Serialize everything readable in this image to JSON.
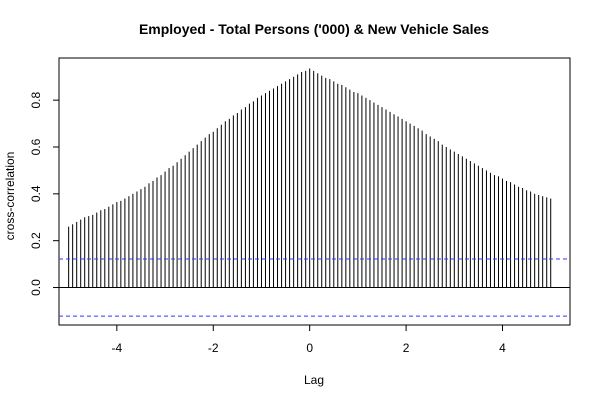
{
  "chart_data": {
    "type": "bar",
    "title": "Employed - Total Persons ('000) & New Vehicle Sales",
    "xlabel": "Lag",
    "ylabel": "cross-correlation",
    "xlim": [
      -5.2,
      5.4
    ],
    "ylim": [
      -0.16,
      0.98
    ],
    "x_ticks": [
      -4,
      -2,
      0,
      2,
      4
    ],
    "x_tick_labels": [
      "-4",
      "-2",
      "0",
      "2",
      "4"
    ],
    "y_ticks": [
      0.0,
      0.2,
      0.4,
      0.6,
      0.8
    ],
    "y_tick_labels": [
      "0.0",
      "0.2",
      "0.4",
      "0.6",
      "0.8"
    ],
    "lag_step": 0.0833333,
    "x": [
      -5.0,
      -4.917,
      -4.833,
      -4.75,
      -4.667,
      -4.583,
      -4.5,
      -4.417,
      -4.333,
      -4.25,
      -4.167,
      -4.083,
      -4.0,
      -3.917,
      -3.833,
      -3.75,
      -3.667,
      -3.583,
      -3.5,
      -3.417,
      -3.333,
      -3.25,
      -3.167,
      -3.083,
      -3.0,
      -2.917,
      -2.833,
      -2.75,
      -2.667,
      -2.583,
      -2.5,
      -2.417,
      -2.333,
      -2.25,
      -2.167,
      -2.083,
      -2.0,
      -1.917,
      -1.833,
      -1.75,
      -1.667,
      -1.583,
      -1.5,
      -1.417,
      -1.333,
      -1.25,
      -1.167,
      -1.083,
      -1.0,
      -0.917,
      -0.833,
      -0.75,
      -0.667,
      -0.583,
      -0.5,
      -0.417,
      -0.333,
      -0.25,
      -0.167,
      -0.083,
      0.0,
      0.083,
      0.167,
      0.25,
      0.333,
      0.417,
      0.5,
      0.583,
      0.667,
      0.75,
      0.833,
      0.917,
      1.0,
      1.083,
      1.167,
      1.25,
      1.333,
      1.417,
      1.5,
      1.583,
      1.667,
      1.75,
      1.833,
      1.917,
      2.0,
      2.083,
      2.167,
      2.25,
      2.333,
      2.417,
      2.5,
      2.583,
      2.667,
      2.75,
      2.833,
      2.917,
      3.0,
      3.083,
      3.167,
      3.25,
      3.333,
      3.417,
      3.5,
      3.583,
      3.667,
      3.75,
      3.833,
      3.917,
      4.0,
      4.083,
      4.167,
      4.25,
      4.333,
      4.417,
      4.5,
      4.583,
      4.667,
      4.75,
      4.833,
      4.917,
      5.0
    ],
    "values": [
      0.26,
      0.27,
      0.28,
      0.29,
      0.3,
      0.305,
      0.31,
      0.32,
      0.33,
      0.335,
      0.345,
      0.355,
      0.365,
      0.37,
      0.38,
      0.39,
      0.4,
      0.41,
      0.42,
      0.43,
      0.445,
      0.455,
      0.47,
      0.48,
      0.495,
      0.51,
      0.52,
      0.535,
      0.55,
      0.565,
      0.58,
      0.595,
      0.61,
      0.625,
      0.64,
      0.655,
      0.665,
      0.68,
      0.695,
      0.71,
      0.72,
      0.735,
      0.745,
      0.76,
      0.77,
      0.785,
      0.795,
      0.81,
      0.82,
      0.83,
      0.84,
      0.85,
      0.86,
      0.87,
      0.88,
      0.89,
      0.9,
      0.91,
      0.92,
      0.925,
      0.935,
      0.925,
      0.915,
      0.905,
      0.895,
      0.89,
      0.88,
      0.87,
      0.865,
      0.855,
      0.845,
      0.835,
      0.83,
      0.82,
      0.81,
      0.8,
      0.79,
      0.78,
      0.77,
      0.76,
      0.75,
      0.74,
      0.73,
      0.72,
      0.71,
      0.7,
      0.69,
      0.68,
      0.67,
      0.655,
      0.645,
      0.635,
      0.625,
      0.61,
      0.6,
      0.59,
      0.58,
      0.57,
      0.56,
      0.55,
      0.54,
      0.53,
      0.52,
      0.51,
      0.5,
      0.49,
      0.48,
      0.475,
      0.465,
      0.455,
      0.45,
      0.44,
      0.43,
      0.425,
      0.415,
      0.41,
      0.4,
      0.395,
      0.39,
      0.385,
      0.38
    ],
    "confidence_band": [
      0.122,
      -0.122
    ],
    "zero_line": 0.0,
    "bar_color": "#000000",
    "band_color": "#3333ff",
    "grid": false,
    "legend": false
  }
}
